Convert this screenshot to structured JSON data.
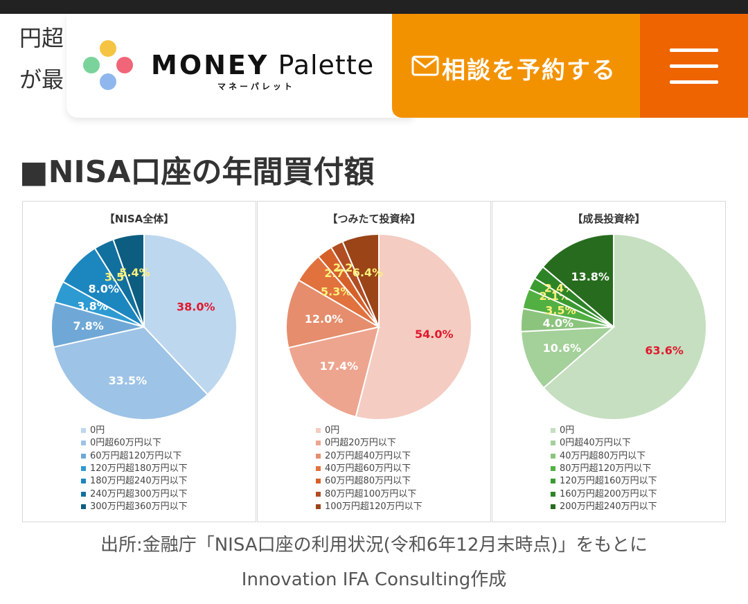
{
  "background_text": {
    "line1": "円超",
    "line2": "が最"
  },
  "header": {
    "logo_main": "MONEY",
    "logo_main2": "Palette",
    "logo_sub": "マネーパレット",
    "consult_label": "相談を予約する",
    "logo_dot_colors": [
      "#f6c443",
      "#f06577",
      "#7ad39a",
      "#8fb7ee"
    ]
  },
  "section_title": "■NISA口座の年間買付額",
  "chart_data": [
    {
      "type": "pie",
      "title": "【NISA全体】",
      "categories": [
        "0円",
        "0円超60万円以下",
        "60万円超120万円以下",
        "120万円超180万円以下",
        "180万円超240万円以下",
        "240万円超300万円以下",
        "300万円超360万円以下"
      ],
      "values": [
        38.0,
        33.5,
        7.8,
        3.8,
        8.0,
        3.5,
        5.4
      ],
      "labels": [
        "38.0%",
        "33.5%",
        "7.8%",
        "3.8%",
        "8.0%",
        "3.5%",
        "5.4%"
      ],
      "colors": [
        "#bdd7ee",
        "#9dc3e6",
        "#6fa8d6",
        "#2d9bd2",
        "#1c86bf",
        "#12709f",
        "#0d5d80"
      ],
      "label_colors": [
        "#e0182d",
        "#ffffff",
        "#ffffff",
        "#ffffff",
        "#ffffff",
        "#fff07a",
        "#fff07a"
      ]
    },
    {
      "type": "pie",
      "title": "【つみたて投資枠】",
      "categories": [
        "0円",
        "0円超20万円以下",
        "20万円超40万円以下",
        "40万円超60万円以下",
        "60万円超80万円以下",
        "80万円超100万円以下",
        "100万円超120万円以下"
      ],
      "values": [
        54.0,
        17.4,
        12.0,
        5.3,
        2.7,
        2.2,
        6.4
      ],
      "labels": [
        "54.0%",
        "17.4%",
        "12.0%",
        "5.3%",
        "2.7%",
        "2.2%",
        "6.4%"
      ],
      "colors": [
        "#f4ccc1",
        "#eda58f",
        "#e58d6c",
        "#e1723e",
        "#d6602a",
        "#b24d23",
        "#9a4418"
      ],
      "label_colors": [
        "#e0182d",
        "#ffffff",
        "#ffffff",
        "#fff07a",
        "#fff07a",
        "#fff07a",
        "#fff07a"
      ]
    },
    {
      "type": "pie",
      "title": "【成長投資枠】",
      "categories": [
        "0円",
        "0円超40万円以下",
        "40万円超80万円以下",
        "80万円超120万円以下",
        "120万円超160万円以下",
        "160万円超200万円以下",
        "200万円超240万円以下"
      ],
      "values": [
        63.6,
        10.6,
        4.0,
        3.5,
        2.1,
        2.4,
        13.8
      ],
      "labels": [
        "63.6%",
        "10.6%",
        "4.0%",
        "3.5%",
        "2.1%",
        "2.4%",
        "13.8%"
      ],
      "colors": [
        "#c5dfc0",
        "#a4d09a",
        "#8cc47e",
        "#52b043",
        "#3a9b31",
        "#2c8426",
        "#276c1e"
      ],
      "label_colors": [
        "#e0182d",
        "#ffffff",
        "#ffffff",
        "#fff07a",
        "#fff07a",
        "#fff07a",
        "#ffffff"
      ]
    }
  ],
  "source": {
    "line1": "出所:金融庁「NISA口座の利用状況(令和6年12月末時点)」をもとに",
    "line2": "Innovation IFA Consulting作成"
  }
}
